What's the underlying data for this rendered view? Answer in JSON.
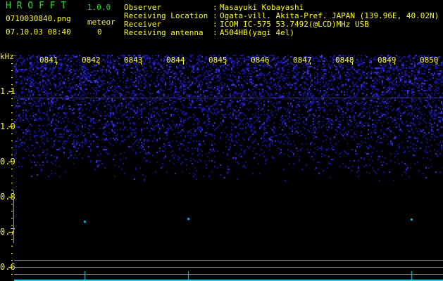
{
  "app": {
    "title": "H R O F F T",
    "version": "1.0.0"
  },
  "file": {
    "name": "0710030840.png",
    "datetime": "07.10.03 08:40"
  },
  "meteor": {
    "label": "meteor",
    "count": "0"
  },
  "info": [
    {
      "label": "Observer",
      "value": "Masayuki Kobayashi"
    },
    {
      "label": "Receiving Location",
      "value": "Ogata-vill. Akita-Pref. JAPAN (139.96E, 40.02N)"
    },
    {
      "label": "Receiver",
      "value": "ICOM IC-575 53.7492(@LCD)MHz USB"
    },
    {
      "label": "Receiving antenna",
      "value": "A504HB(yagi 4el)"
    }
  ],
  "axis": {
    "unit": "kHz",
    "y_labels": [
      "1.1",
      "1.0",
      "0.9",
      "0.8",
      "0.7",
      "0.6"
    ],
    "time_labels": [
      "0841",
      "0842",
      "0843",
      "0844",
      "0845",
      "0846",
      "0847",
      "0848",
      "0849",
      "0850"
    ]
  },
  "colors": {
    "text": "#ffff00",
    "title": "#22dd22",
    "noise": "#2020c0",
    "echo": "#00e0ff"
  }
}
